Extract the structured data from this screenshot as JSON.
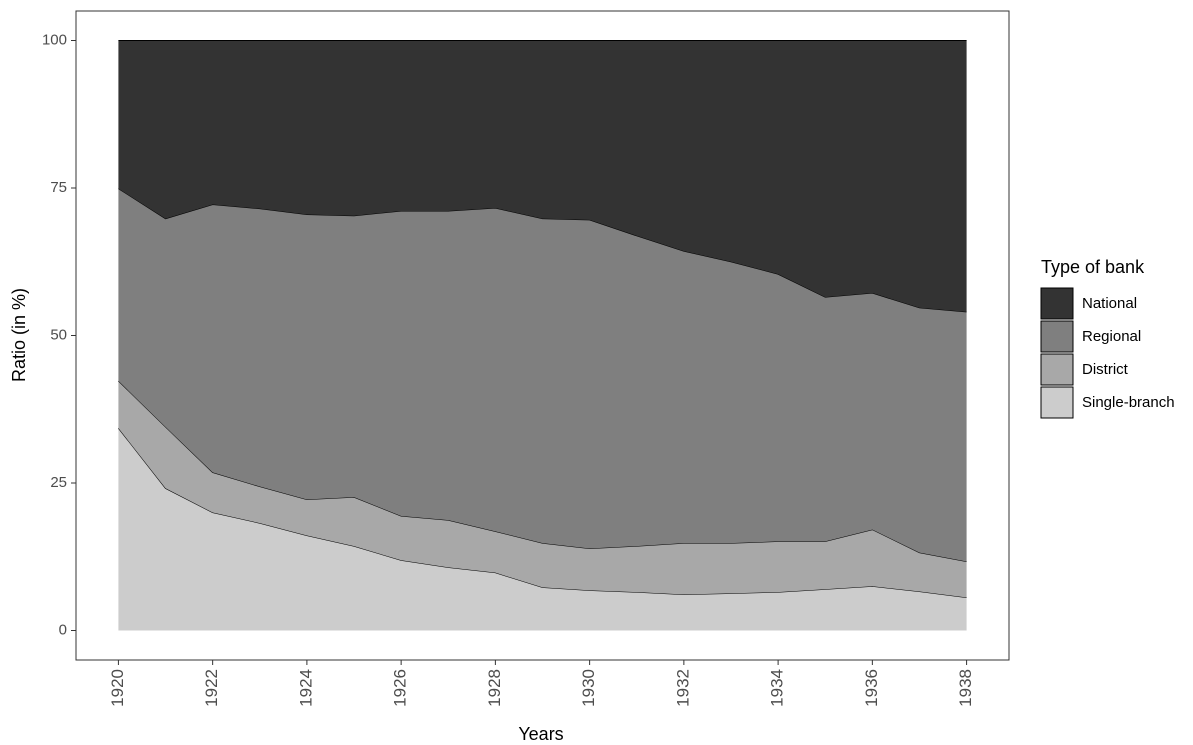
{
  "chart_data": {
    "type": "stacked-area",
    "x_label": "Years",
    "y_label": "Ratio (in %)",
    "legend_title": "Type of bank",
    "legend": "right",
    "x": [
      1920,
      1921,
      1922,
      1923,
      1924,
      1925,
      1926,
      1927,
      1928,
      1929,
      1930,
      1931,
      1932,
      1933,
      1934,
      1935,
      1936,
      1937,
      1938
    ],
    "xlim": [
      1919.1,
      1938.9
    ],
    "xticks": [
      1920,
      1922,
      1924,
      1926,
      1928,
      1930,
      1932,
      1934,
      1936,
      1938
    ],
    "ylim": [
      -5,
      105
    ],
    "yticks": [
      0,
      25,
      50,
      75,
      100
    ],
    "series": [
      {
        "name": "Single-branch",
        "color": "#cccccc",
        "values": [
          34.3,
          24.1,
          20.0,
          18.2,
          16.1,
          14.3,
          11.9,
          10.7,
          9.8,
          7.3,
          6.8,
          6.5,
          6.1,
          6.3,
          6.5,
          7.0,
          7.5,
          6.6,
          5.6
        ]
      },
      {
        "name": "District",
        "color": "#a8a8a8",
        "values": [
          8.0,
          10.4,
          6.8,
          6.2,
          6.1,
          8.3,
          7.5,
          8.0,
          7.0,
          7.5,
          7.1,
          7.8,
          8.7,
          8.5,
          8.6,
          8.1,
          9.6,
          6.6,
          6.1
        ]
      },
      {
        "name": "Regional",
        "color": "#7f7f7f",
        "values": [
          32.6,
          35.3,
          45.4,
          47.1,
          48.3,
          47.7,
          51.7,
          52.4,
          54.8,
          55.0,
          55.7,
          52.6,
          49.5,
          47.7,
          45.3,
          41.4,
          40.1,
          41.5,
          42.3
        ]
      },
      {
        "name": "National",
        "color": "#333333",
        "values": [
          25.1,
          30.2,
          27.8,
          28.5,
          29.5,
          29.7,
          28.9,
          28.9,
          28.4,
          30.2,
          30.4,
          33.1,
          35.7,
          37.5,
          39.6,
          43.5,
          42.8,
          45.3,
          46.0
        ]
      }
    ]
  }
}
